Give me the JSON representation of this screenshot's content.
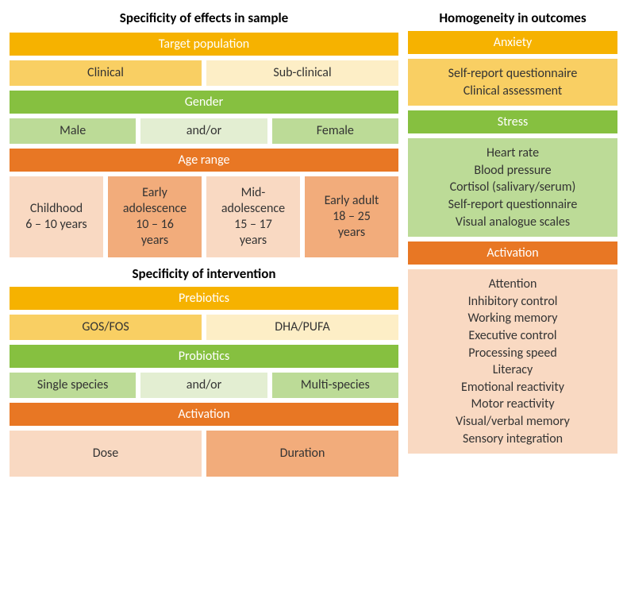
{
  "colors": {
    "yellow_header": "#f6b200",
    "yellow_mid": "#f9cf63",
    "yellow_light": "#fdeec6",
    "green_header": "#86c040",
    "green_mid": "#bcdb97",
    "green_light": "#e3eed2",
    "orange_header": "#e87724",
    "orange_mid": "#f2ac7b",
    "orange_light": "#f9d9c2",
    "text_dark": "#333333",
    "text_white": "#ffffff"
  },
  "left": {
    "section1_title": "Specificity of effects in sample",
    "target_population": "Target population",
    "clinical": "Clinical",
    "subclinical": "Sub-clinical",
    "gender": "Gender",
    "male": "Male",
    "andor1": "and/or",
    "female": "Female",
    "age_range": "Age range",
    "age_cells": [
      {
        "l1": "Childhood",
        "l2": "6 – 10 years"
      },
      {
        "l1": "Early",
        "l2": "adolescence",
        "l3": "10 – 16",
        "l4": "years"
      },
      {
        "l1": "Mid-",
        "l2": "adolescence",
        "l3": "15 – 17",
        "l4": "years"
      },
      {
        "l1": "Early adult",
        "l2": "18 – 25",
        "l3": "years"
      }
    ],
    "section2_title": "Specificity of intervention",
    "prebiotics": "Prebiotics",
    "gosfos": "GOS/FOS",
    "dhapufa": "DHA/PUFA",
    "probiotics": "Probiotics",
    "single_species": "Single species",
    "andor2": "and/or",
    "multi_species": "Multi-species",
    "activation": "Activation",
    "dose": "Dose",
    "duration": "Duration"
  },
  "right": {
    "title": "Homogeneity in outcomes",
    "anxiety": "Anxiety",
    "anxiety_items": [
      "Self-report questionnaire",
      "Clinical assessment"
    ],
    "stress": "Stress",
    "stress_items": [
      "Heart rate",
      "Blood pressure",
      "Cortisol (salivary/serum)",
      "Self-report questionnaire",
      "Visual analogue scales"
    ],
    "activation": "Activation",
    "activation_items": [
      "Attention",
      "Inhibitory control",
      "Working memory",
      "Executive control",
      "Processing speed",
      "Literacy",
      "Emotional reactivity",
      "Motor reactivity",
      "Visual/verbal memory",
      "Sensory integration"
    ]
  },
  "style": {
    "heading_fontsize": 17,
    "bar_fontsize": 16,
    "cell_fontsize": 16,
    "font_family": "Segoe UI, Calibri, Arial, sans-serif"
  }
}
